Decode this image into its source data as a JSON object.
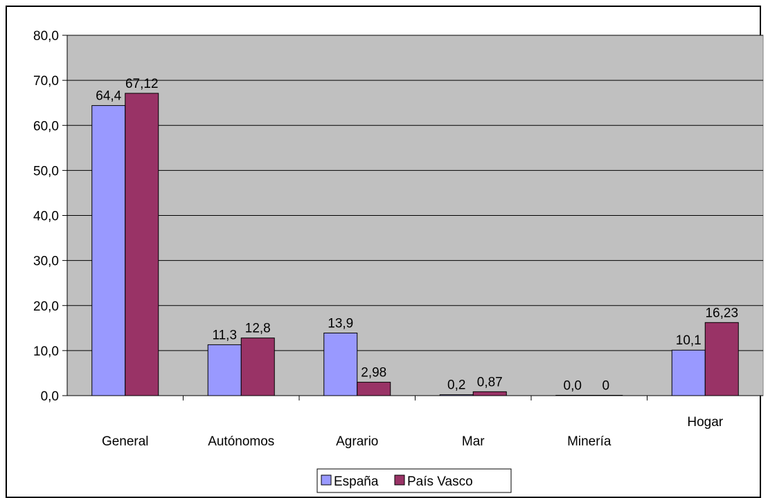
{
  "chart_data": {
    "type": "bar",
    "categories": [
      "General",
      "Autónomos",
      "Agrario",
      "Mar",
      "Minería",
      "Hogar"
    ],
    "series": [
      {
        "name": "España",
        "values": [
          64.4,
          11.3,
          13.9,
          0.2,
          0.0,
          10.1
        ],
        "labels": [
          "64,4",
          "11,3",
          "13,9",
          "0,2",
          "0,0",
          "10,1"
        ],
        "color": "#9999ff"
      },
      {
        "name": "País Vasco",
        "values": [
          67.12,
          12.8,
          2.98,
          0.87,
          0,
          16.23
        ],
        "labels": [
          "67,12",
          "12,8",
          "2,98",
          "0,87",
          "0",
          "16,23"
        ],
        "color": "#993366"
      }
    ],
    "yticks": [
      "0,0",
      "10,0",
      "20,0",
      "30,0",
      "40,0",
      "50,0",
      "60,0",
      "70,0",
      "80,0"
    ],
    "ylim": [
      0,
      80
    ],
    "grid": true,
    "plot_background": "#c0c0c0",
    "legend_position": "bottom"
  }
}
